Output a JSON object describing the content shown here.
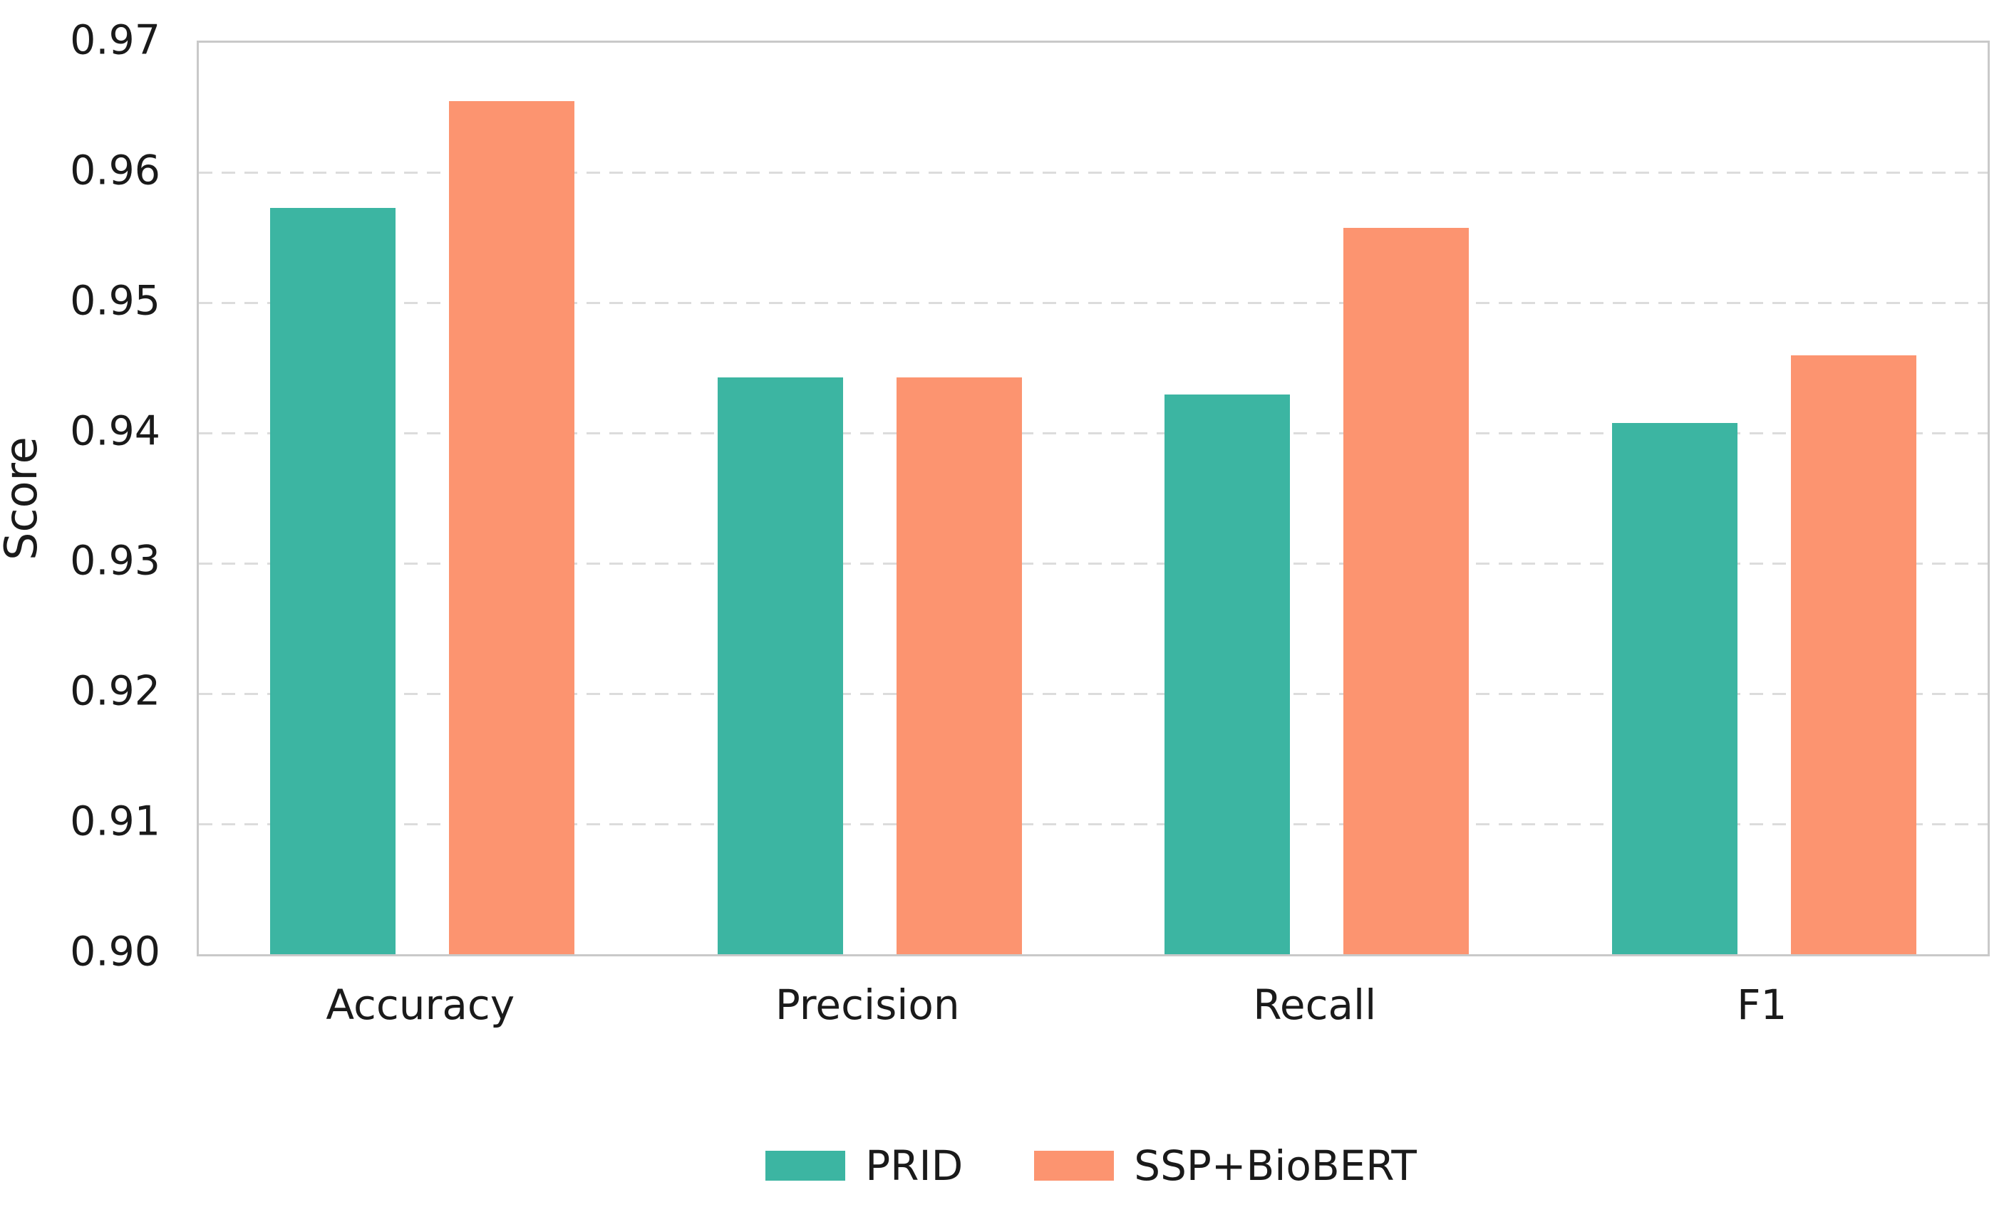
{
  "chart_data": {
    "type": "bar",
    "title": "",
    "xlabel": "",
    "ylabel": "Score",
    "categories": [
      "Accuracy",
      "Precision",
      "Recall",
      "F1"
    ],
    "series": [
      {
        "name": "PRID",
        "color": "#3CB5A2",
        "values": [
          0.9573,
          0.9443,
          0.943,
          0.9408
        ]
      },
      {
        "name": "SSP+BioBERT",
        "color": "#FC9470",
        "values": [
          0.9655,
          0.9443,
          0.9558,
          0.946
        ]
      }
    ],
    "ylim": [
      0.9,
      0.97
    ],
    "yticks": [
      0.9,
      0.91,
      0.92,
      0.93,
      0.94,
      0.95,
      0.96,
      0.97
    ],
    "ytick_format_decimals": 2,
    "grid": "horizontal-dashed",
    "legend_position": "bottom-center",
    "bar_width_frac": 0.28,
    "bar_offset_frac": 0.2
  },
  "colors": {
    "background": "#ffffff",
    "spine": "#c9c9c9",
    "gridline": "#dcdcdc",
    "text": "#1a1a1a",
    "series_prid": "#3CB5A2",
    "series_ssp_biobert": "#FC9470"
  }
}
